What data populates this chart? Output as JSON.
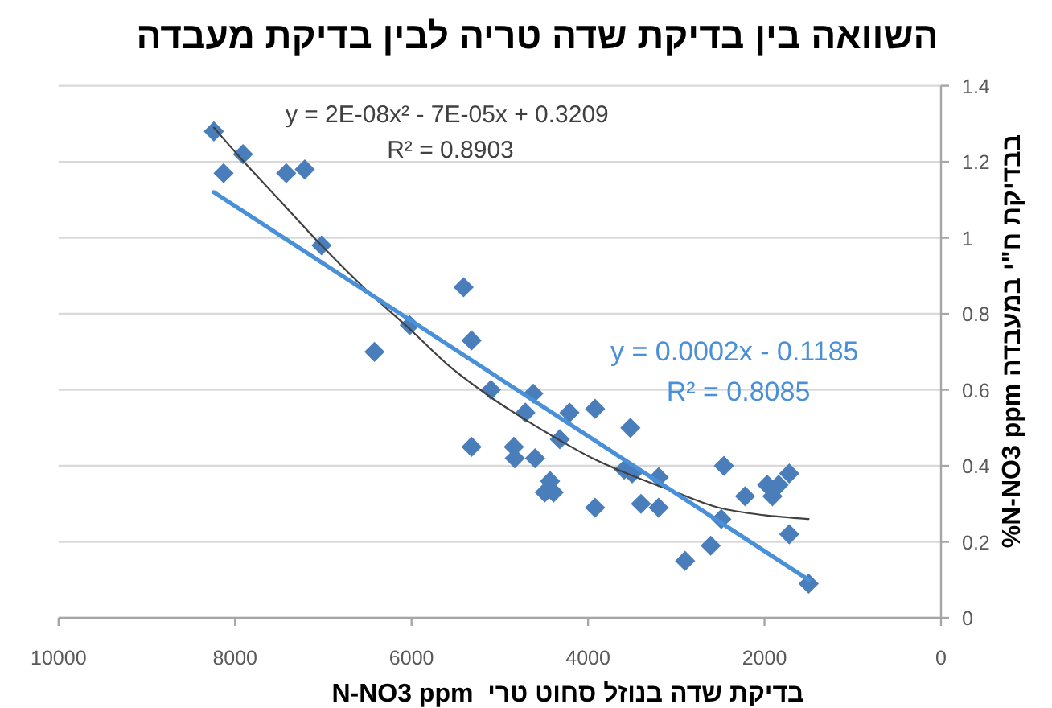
{
  "chart_data": {
    "type": "scatter",
    "title": "השוואה בין בדיקת שדה טריה לבין בדיקת מעבדה",
    "xlabel": "בדיקת שדה בנוזל סחוט טרי  N-NO3 ppm",
    "ylabel": "%N-NO3 ppm בבדיקת ח\"י במעבדה",
    "xlim": [
      10000,
      0
    ],
    "xticks": [
      10000,
      8000,
      6000,
      4000,
      2000,
      0
    ],
    "ylim": [
      0,
      1.4
    ],
    "yticks": [
      0,
      0.2,
      0.4,
      0.6,
      0.8,
      1,
      1.2,
      1.4
    ],
    "grid": "y",
    "marker": "diamond",
    "series": [
      {
        "color": "#4a7ebb",
        "x": [
          8240,
          8130,
          7910,
          7420,
          7210,
          7020,
          6420,
          6020,
          5410,
          5320,
          5320,
          5100,
          4840,
          4830,
          4710,
          4620,
          4600,
          4490,
          4430,
          4390,
          4320,
          4210,
          3920,
          3920,
          3520,
          3590,
          3500,
          3400,
          3200,
          3200,
          2900,
          2610,
          2490,
          2460,
          2220,
          1970,
          1910,
          1840,
          1720,
          1720,
          1500
        ],
        "values": [
          1.28,
          1.17,
          1.22,
          1.17,
          1.18,
          0.98,
          0.7,
          0.77,
          0.87,
          0.73,
          0.45,
          0.6,
          0.45,
          0.42,
          0.54,
          0.59,
          0.42,
          0.33,
          0.36,
          0.33,
          0.47,
          0.54,
          0.55,
          0.29,
          0.5,
          0.39,
          0.38,
          0.3,
          0.37,
          0.29,
          0.15,
          0.19,
          0.26,
          0.4,
          0.32,
          0.35,
          0.32,
          0.35,
          0.38,
          0.22,
          0.09
        ]
      },
      {
        "type": "line",
        "marker": "none",
        "name": "y = 2E-08x² - 7E-05x + 0.3209\nR² = 0.8903",
        "color": "#404040",
        "x": [
          8240,
          7900,
          7500,
          7020,
          6500,
          6020,
          5560,
          5100,
          4700,
          4340,
          3950,
          3560,
          3000,
          2520,
          2000,
          1500
        ],
        "values": [
          1.29,
          1.2,
          1.1,
          0.98,
          0.86,
          0.76,
          0.66,
          0.58,
          0.52,
          0.47,
          0.42,
          0.38,
          0.33,
          0.29,
          0.27,
          0.26
        ]
      },
      {
        "type": "line",
        "marker": "none",
        "name": "y = 0.0002x - 0.1185\nR² = 0.8085",
        "color": "#4a90d8",
        "x": [
          8240,
          1500
        ],
        "values": [
          1.12,
          0.1
        ]
      }
    ]
  }
}
